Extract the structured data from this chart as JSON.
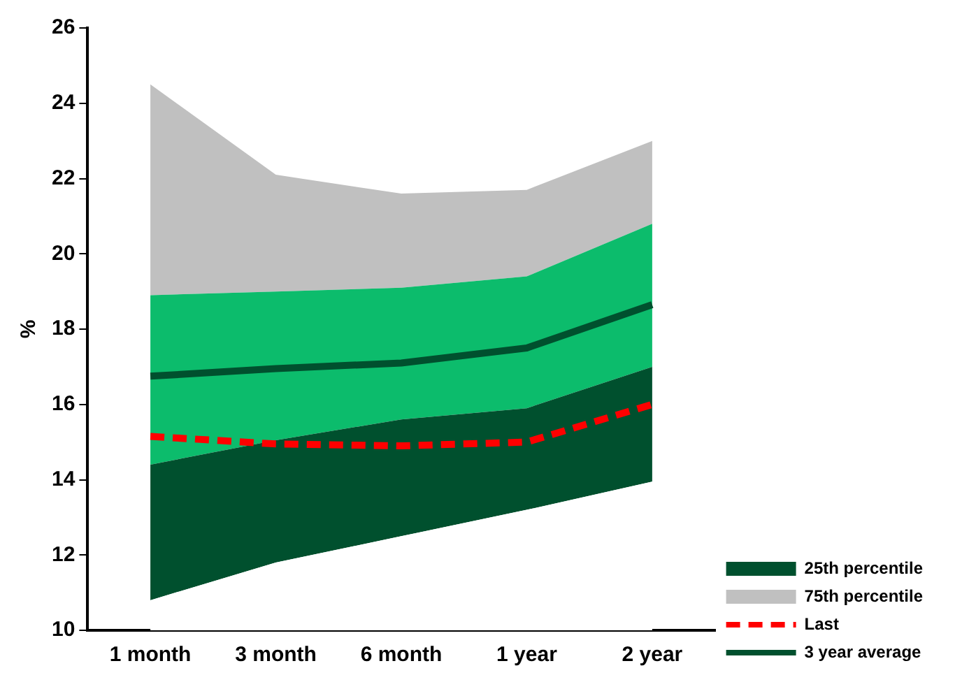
{
  "chart_data": {
    "type": "area",
    "ylabel": "%",
    "categories": [
      "1 month",
      "3 month",
      "6 month",
      "1 year",
      "2 year"
    ],
    "series": [
      {
        "type": "area",
        "color": "#ffffff",
        "values": [
          10.8,
          11.8,
          12.5,
          13.2,
          13.95
        ]
      },
      {
        "name": "25th percentile",
        "type": "area",
        "color": "#00502e",
        "values": [
          14.4,
          15.05,
          15.6,
          15.9,
          17.0
        ]
      },
      {
        "type": "area",
        "color": "#0cbc6c",
        "values": [
          18.9,
          19.0,
          19.1,
          19.4,
          20.8
        ]
      },
      {
        "name": "75th percentile",
        "type": "area",
        "color": "#c0c0c0",
        "values": [
          24.5,
          22.1,
          21.6,
          21.7,
          23.0
        ]
      },
      {
        "name": "Last",
        "type": "line",
        "color": "#ff0000",
        "line_style": "dashed",
        "values": [
          15.15,
          14.95,
          14.9,
          15.0,
          16.0
        ]
      },
      {
        "name": "3 year average",
        "type": "line",
        "color": "#00502e",
        "line_style": "solid",
        "values": [
          16.75,
          16.95,
          17.1,
          17.5,
          18.65
        ]
      }
    ],
    "ylim": [
      10,
      26
    ],
    "yticks": [
      10,
      12,
      14,
      16,
      18,
      20,
      22,
      24,
      26
    ],
    "grid": false,
    "legend": "right",
    "marker": "none"
  }
}
